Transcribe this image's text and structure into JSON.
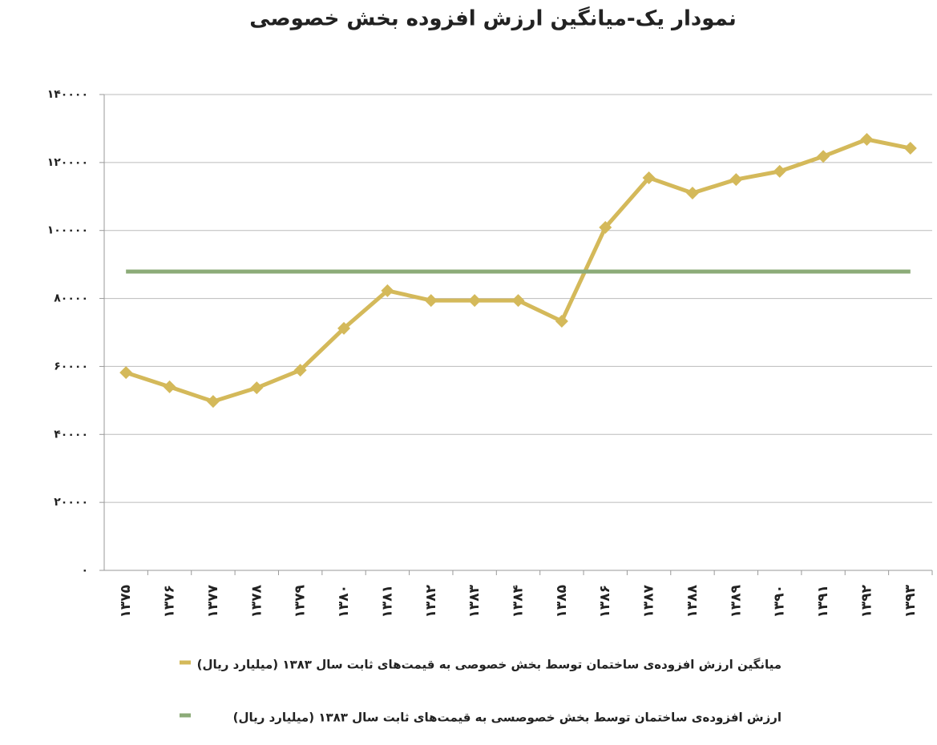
{
  "chart_data": {
    "type": "line",
    "title": "نمودار یک-میانگین ارزش افزوده بخش خصوصی",
    "categories": [
      "۱۳۷۵",
      "۱۳۷۶",
      "۱۳۷۷",
      "۱۳۷۸",
      "۱۳۷۹",
      "۱۳۸۰",
      "۱۳۸۱",
      "۱۳۸۲",
      "۱۳۸۳",
      "۱۳۸۴",
      "۱۳۸۵",
      "۱۳۸۶",
      "۱۳۸۷",
      "۱۳۸۸",
      "۱۳۸۹",
      "۱۳۹۰",
      "۱۳۹۱",
      "۱۳۹۲",
      "۱۳۹۳"
    ],
    "series": [
      {
        "name": "میانگین ارزش افزوده‌ی ساختمان توسط بخش خصوصی به قیمت‌های ثابت سال ۱۳۸۳ (میلیارد ریال)",
        "color": "#d4b95a",
        "markers": true,
        "values": [
          58200,
          54000,
          49700,
          53700,
          58900,
          71200,
          82300,
          79400,
          79400,
          79400,
          73300,
          100900,
          115500,
          111000,
          115000,
          117400,
          121800,
          126800,
          124200
        ]
      },
      {
        "name": "ارزش افزوده‌ی ساختمان توسط بخش خصوصسی به قیمت‌های ثابت سال ۱۳۸۳ (میلیارد ریال)",
        "color": "#8cab78",
        "markers": false,
        "values": [
          87900,
          87900,
          87900,
          87900,
          87900,
          87900,
          87900,
          87900,
          87900,
          87900,
          87900,
          87900,
          87900,
          87900,
          87900,
          87900,
          87900,
          87900,
          87900
        ]
      }
    ],
    "ylim": [
      0,
      140000
    ],
    "yticks": [
      {
        "value": 0,
        "label": "۰"
      },
      {
        "value": 20000,
        "label": "۲۰۰۰۰"
      },
      {
        "value": 40000,
        "label": "۴۰۰۰۰"
      },
      {
        "value": 60000,
        "label": "۶۰۰۰۰"
      },
      {
        "value": 80000,
        "label": "۸۰۰۰۰"
      },
      {
        "value": 100000,
        "label": "۱۰۰۰۰۰"
      },
      {
        "value": 120000,
        "label": "۱۲۰۰۰۰"
      },
      {
        "value": 140000,
        "label": "۱۴۰۰۰۰"
      }
    ],
    "grid": true
  }
}
